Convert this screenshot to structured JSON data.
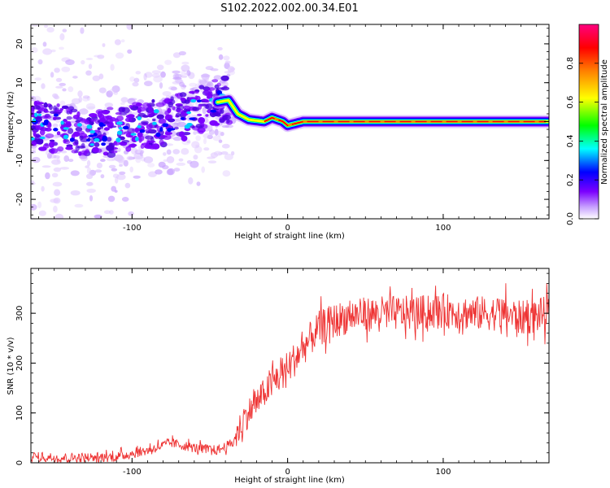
{
  "title": "S102.2022.002.00.34.E01",
  "chart_data": [
    {
      "type": "heatmap",
      "xlabel": "Height of straight line (km)",
      "ylabel": "Frequency (Hz)",
      "xlim": [
        -165,
        168
      ],
      "ylim": [
        -25,
        25
      ],
      "x_ticks": [
        -100,
        0,
        100
      ],
      "y_ticks": [
        -20,
        -10,
        0,
        10,
        20
      ],
      "colorbar": {
        "label": "Normalized spectral amplitude",
        "range": [
          0,
          1
        ],
        "ticks": [
          0.0,
          0.2,
          0.4,
          0.6,
          0.8
        ]
      },
      "ridge": [
        {
          "x": -165,
          "f": -1
        },
        {
          "x": -120,
          "f": -3
        },
        {
          "x": -90,
          "f": -1
        },
        {
          "x": -60,
          "f": 2
        },
        {
          "x": -45,
          "f": 5
        },
        {
          "x": -38,
          "f": 5.5
        },
        {
          "x": -32,
          "f": 2
        },
        {
          "x": -25,
          "f": 0.5
        },
        {
          "x": -15,
          "f": 0
        },
        {
          "x": -10,
          "f": 1
        },
        {
          "x": -3,
          "f": 0
        },
        {
          "x": 0,
          "f": -1
        },
        {
          "x": 10,
          "f": 0
        },
        {
          "x": 168,
          "f": 0
        }
      ],
      "colors": [
        "#ffffff",
        "#c8a2ff",
        "#7b00ff",
        "#0000ff",
        "#00ffff",
        "#00ff00",
        "#ffff00",
        "#ff8000",
        "#ff0000",
        "#ff0080"
      ]
    },
    {
      "type": "line",
      "xlabel": "Height of straight line (km)",
      "ylabel": "SNR (10 * v/v)",
      "xlim": [
        -165,
        168
      ],
      "ylim": [
        0,
        390
      ],
      "x_ticks": [
        -100,
        0,
        100
      ],
      "y_ticks": [
        0,
        100,
        200,
        300
      ],
      "series": [
        {
          "color": "#ee3333",
          "x": [
            -165,
            -140,
            -110,
            -90,
            -75,
            -60,
            -45,
            -35,
            -28,
            -20,
            -10,
            0,
            10,
            20,
            30,
            40,
            60,
            80,
            100,
            120,
            140,
            150,
            168
          ],
          "y": [
            12,
            10,
            12,
            25,
            40,
            30,
            25,
            40,
            90,
            120,
            160,
            190,
            230,
            270,
            285,
            295,
            300,
            300,
            305,
            300,
            300,
            290,
            300
          ]
        }
      ]
    }
  ]
}
